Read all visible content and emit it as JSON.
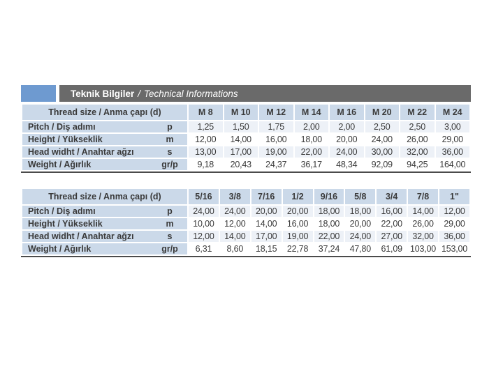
{
  "page": {
    "background": "#ffffff"
  },
  "header": {
    "accent_color": "#6e9ad0",
    "bar_color": "#6a6a6a",
    "title_tr": "Teknik Bilgiler",
    "separator": "/",
    "title_en": "Technical Informations"
  },
  "colors": {
    "cell_blue": "#cbd9e9",
    "row_tint": "#edf1f7",
    "text": "#3a3a3a",
    "table_bottom_border": "#4b4b4b"
  },
  "tables": [
    {
      "name": "metric-thread-sizes",
      "row_header": "Thread size / Anma çapı (d)",
      "columns": [
        "M 8",
        "M 10",
        "M 12",
        "M 14",
        "M 16",
        "M 20",
        "M 22",
        "M 24"
      ],
      "rows": [
        {
          "label": "Pitch / Diş adımı",
          "unit": "p",
          "values": [
            "1,25",
            "1,50",
            "1,75",
            "2,00",
            "2,00",
            "2,50",
            "2,50",
            "3,00"
          ]
        },
        {
          "label": "Height / Yükseklik",
          "unit": "m",
          "values": [
            "12,00",
            "14,00",
            "16,00",
            "18,00",
            "20,00",
            "24,00",
            "26,00",
            "29,00"
          ]
        },
        {
          "label": "Head widht / Anahtar ağzı",
          "unit": "s",
          "values": [
            "13,00",
            "17,00",
            "19,00",
            "22,00",
            "24,00",
            "30,00",
            "32,00",
            "36,00"
          ]
        },
        {
          "label": "Weight / Ağırlık",
          "unit": "gr/p",
          "values": [
            "9,18",
            "20,43",
            "24,37",
            "36,17",
            "48,34",
            "92,09",
            "94,25",
            "164,00"
          ]
        }
      ]
    },
    {
      "name": "imperial-thread-sizes",
      "row_header": "Thread size / Anma çapı (d)",
      "columns": [
        "5/16",
        "3/8",
        "7/16",
        "1/2",
        "9/16",
        "5/8",
        "3/4",
        "7/8",
        "1\""
      ],
      "rows": [
        {
          "label": "Pitch / Diş adımı",
          "unit": "p",
          "values": [
            "24,00",
            "24,00",
            "20,00",
            "20,00",
            "18,00",
            "18,00",
            "16,00",
            "14,00",
            "12,00"
          ]
        },
        {
          "label": "Height / Yükseklik",
          "unit": "m",
          "values": [
            "10,00",
            "12,00",
            "14,00",
            "16,00",
            "18,00",
            "20,00",
            "22,00",
            "26,00",
            "29,00"
          ]
        },
        {
          "label": "Head widht / Anahtar ağzı",
          "unit": "s",
          "values": [
            "12,00",
            "14,00",
            "17,00",
            "19,00",
            "22,00",
            "24,00",
            "27,00",
            "32,00",
            "36,00"
          ]
        },
        {
          "label": "Weight / Ağırlık",
          "unit": "gr/p",
          "values": [
            "6,31",
            "8,60",
            "18,15",
            "22,78",
            "37,24",
            "47,80",
            "61,09",
            "103,00",
            "153,00"
          ]
        }
      ]
    }
  ]
}
